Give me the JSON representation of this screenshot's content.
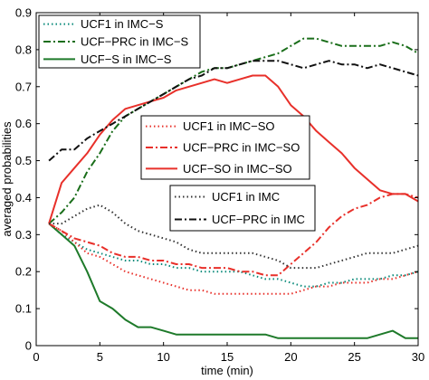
{
  "chart_data": {
    "type": "line",
    "xlabel": "time (min)",
    "ylabel": "averaged probabilities",
    "xlim": [
      0,
      30
    ],
    "ylim": [
      0,
      0.9
    ],
    "xticks": [
      0,
      5,
      10,
      15,
      20,
      25,
      30
    ],
    "yticks": [
      0,
      0.1,
      0.2,
      0.3,
      0.4,
      0.5,
      0.6,
      0.7,
      0.8,
      0.9
    ],
    "xtick_labels": [
      "0",
      "5",
      "10",
      "15",
      "20",
      "25",
      "30"
    ],
    "ytick_labels": [
      "0",
      "0.1",
      "0.2",
      "0.3",
      "0.4",
      "0.5",
      "0.6",
      "0.7",
      "0.8",
      "0.9"
    ],
    "grid": false,
    "series": [
      {
        "name": "UCF1 in IMC−S",
        "color": "#0a8a7a",
        "dash": "dotted",
        "legend": 0,
        "x": [
          1,
          2,
          3,
          4,
          5,
          6,
          7,
          8,
          9,
          10,
          11,
          12,
          13,
          14,
          15,
          16,
          17,
          18,
          19,
          20,
          21,
          22,
          23,
          24,
          25,
          26,
          27,
          28,
          29,
          30
        ],
        "y": [
          0.33,
          0.3,
          0.28,
          0.26,
          0.25,
          0.24,
          0.23,
          0.23,
          0.22,
          0.22,
          0.21,
          0.21,
          0.2,
          0.2,
          0.2,
          0.2,
          0.19,
          0.18,
          0.18,
          0.17,
          0.16,
          0.16,
          0.17,
          0.17,
          0.18,
          0.18,
          0.18,
          0.19,
          0.19,
          0.2
        ]
      },
      {
        "name": "UCF−PRC in IMC−S",
        "color": "#1a6e1a",
        "dash": "dashdot",
        "legend": 0,
        "x": [
          1,
          2,
          3,
          4,
          5,
          6,
          7,
          8,
          9,
          10,
          11,
          12,
          13,
          14,
          15,
          16,
          17,
          18,
          19,
          20,
          21,
          22,
          23,
          24,
          25,
          26,
          27,
          28,
          29,
          30
        ],
        "y": [
          0.33,
          0.36,
          0.4,
          0.47,
          0.52,
          0.58,
          0.62,
          0.64,
          0.66,
          0.68,
          0.7,
          0.72,
          0.74,
          0.75,
          0.75,
          0.76,
          0.77,
          0.78,
          0.79,
          0.81,
          0.83,
          0.83,
          0.82,
          0.81,
          0.81,
          0.81,
          0.81,
          0.82,
          0.81,
          0.79
        ]
      },
      {
        "name": "UCF−S in IMC−S",
        "color": "#1e7a2a",
        "dash": "solid",
        "legend": 0,
        "x": [
          1,
          2,
          3,
          4,
          5,
          6,
          7,
          8,
          9,
          10,
          11,
          12,
          13,
          14,
          15,
          16,
          17,
          18,
          19,
          20,
          21,
          22,
          23,
          24,
          25,
          26,
          27,
          28,
          29,
          30
        ],
        "y": [
          0.33,
          0.3,
          0.27,
          0.2,
          0.12,
          0.1,
          0.07,
          0.05,
          0.05,
          0.04,
          0.03,
          0.03,
          0.03,
          0.03,
          0.03,
          0.03,
          0.03,
          0.03,
          0.02,
          0.02,
          0.02,
          0.02,
          0.02,
          0.02,
          0.02,
          0.02,
          0.03,
          0.04,
          0.02,
          0.02
        ]
      },
      {
        "name": "UCF1 in IMC−SO",
        "color": "#e8302a",
        "dash": "dotted",
        "legend": 1,
        "x": [
          1,
          2,
          3,
          4,
          5,
          6,
          7,
          8,
          9,
          10,
          11,
          12,
          13,
          14,
          15,
          16,
          17,
          18,
          19,
          20,
          21,
          22,
          23,
          24,
          25,
          26,
          27,
          28,
          29,
          30
        ],
        "y": [
          0.33,
          0.31,
          0.28,
          0.25,
          0.24,
          0.22,
          0.2,
          0.19,
          0.18,
          0.17,
          0.16,
          0.15,
          0.15,
          0.14,
          0.14,
          0.14,
          0.14,
          0.14,
          0.14,
          0.14,
          0.15,
          0.16,
          0.16,
          0.17,
          0.17,
          0.17,
          0.18,
          0.18,
          0.19,
          0.2
        ]
      },
      {
        "name": "UCF−PRC in IMC−SO",
        "color": "#e8302a",
        "dash": "dashdot",
        "legend": 1,
        "x": [
          1,
          2,
          3,
          4,
          5,
          6,
          7,
          8,
          9,
          10,
          11,
          12,
          13,
          14,
          15,
          16,
          17,
          18,
          19,
          20,
          21,
          22,
          23,
          24,
          25,
          26,
          27,
          28,
          29,
          30
        ],
        "y": [
          0.33,
          0.31,
          0.29,
          0.28,
          0.27,
          0.25,
          0.24,
          0.24,
          0.23,
          0.23,
          0.22,
          0.22,
          0.21,
          0.21,
          0.21,
          0.2,
          0.2,
          0.19,
          0.19,
          0.22,
          0.25,
          0.28,
          0.32,
          0.35,
          0.37,
          0.38,
          0.4,
          0.41,
          0.41,
          0.4
        ]
      },
      {
        "name": "UCF−SO in IMC−SO",
        "color": "#e8302a",
        "dash": "solid",
        "legend": 1,
        "x": [
          1,
          2,
          3,
          4,
          5,
          6,
          7,
          8,
          9,
          10,
          11,
          12,
          13,
          14,
          15,
          16,
          17,
          18,
          19,
          20,
          21,
          22,
          23,
          24,
          25,
          26,
          27,
          28,
          29,
          30
        ],
        "y": [
          0.33,
          0.44,
          0.48,
          0.52,
          0.57,
          0.61,
          0.64,
          0.65,
          0.66,
          0.67,
          0.69,
          0.7,
          0.71,
          0.72,
          0.71,
          0.72,
          0.73,
          0.73,
          0.7,
          0.65,
          0.62,
          0.58,
          0.55,
          0.52,
          0.48,
          0.45,
          0.42,
          0.41,
          0.41,
          0.39
        ]
      },
      {
        "name": "UCF1 in IMC",
        "color": "#333333",
        "dash": "dotted",
        "legend": 2,
        "x": [
          1,
          2,
          3,
          4,
          5,
          6,
          7,
          8,
          9,
          10,
          11,
          12,
          13,
          14,
          15,
          16,
          17,
          18,
          19,
          20,
          21,
          22,
          23,
          24,
          25,
          26,
          27,
          28,
          29,
          30
        ],
        "y": [
          0.33,
          0.33,
          0.35,
          0.37,
          0.38,
          0.36,
          0.33,
          0.31,
          0.3,
          0.29,
          0.28,
          0.26,
          0.25,
          0.25,
          0.25,
          0.25,
          0.25,
          0.24,
          0.23,
          0.21,
          0.21,
          0.21,
          0.22,
          0.23,
          0.24,
          0.25,
          0.25,
          0.25,
          0.26,
          0.27
        ]
      },
      {
        "name": "UCF−PRC in IMC",
        "color": "#111111",
        "dash": "dashdot",
        "legend": 2,
        "x": [
          1,
          2,
          3,
          4,
          5,
          6,
          7,
          8,
          9,
          10,
          11,
          12,
          13,
          14,
          15,
          16,
          17,
          18,
          19,
          20,
          21,
          22,
          23,
          24,
          25,
          26,
          27,
          28,
          29,
          30
        ],
        "y": [
          0.5,
          0.53,
          0.53,
          0.56,
          0.58,
          0.6,
          0.62,
          0.64,
          0.66,
          0.68,
          0.7,
          0.72,
          0.73,
          0.75,
          0.75,
          0.76,
          0.77,
          0.77,
          0.77,
          0.76,
          0.75,
          0.76,
          0.77,
          0.76,
          0.76,
          0.75,
          0.76,
          0.75,
          0.74,
          0.73
        ]
      }
    ],
    "legends": [
      {
        "placement": "top-left",
        "entries": [
          "UCF1 in IMC−S",
          "UCF−PRC in IMC−S",
          "UCF−S in IMC−S"
        ]
      },
      {
        "placement": "center",
        "entries": [
          "UCF1 in IMC−SO",
          "UCF−PRC in IMC−SO",
          "UCF−SO in IMC−SO"
        ]
      },
      {
        "placement": "center-right",
        "entries": [
          "UCF1 in IMC",
          "UCF−PRC in IMC"
        ]
      }
    ]
  }
}
